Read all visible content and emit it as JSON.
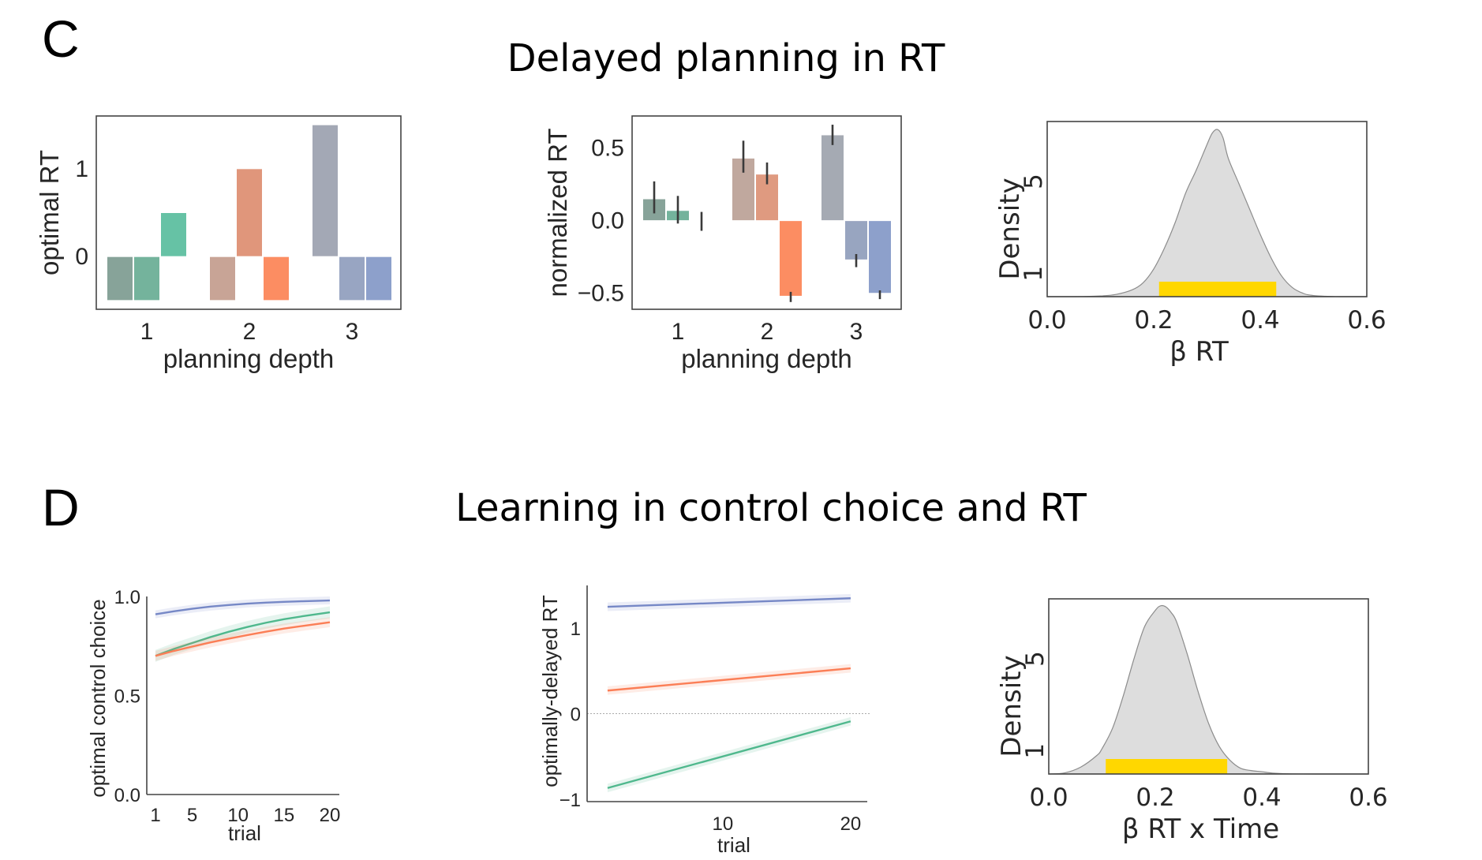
{
  "panels": {
    "C": {
      "letter": "C",
      "title": "Delayed planning in RT"
    },
    "D": {
      "letter": "D",
      "title": "Learning in control choice and RT"
    }
  },
  "colors": {
    "axis": "#444444",
    "text": "#262626",
    "density_fill": "#dddddd",
    "density_line": "#8c8c8c",
    "hdi": "#ffd700",
    "errorbar": "#3a3a3a",
    "blue": "#7688c6",
    "green": "#4fb88d",
    "orange": "#fb7e56",
    "zero_line": "#aaaaaa"
  },
  "chart_data": [
    {
      "id": "optimal-rt",
      "type": "bar",
      "title": "",
      "xlabel": "planning depth",
      "ylabel": "optimal RT",
      "categories": [
        "1",
        "2",
        "3"
      ],
      "yticks": [
        "0",
        "1"
      ],
      "ytick_values": [
        0,
        1
      ],
      "ylim": [
        -0.6,
        1.6
      ],
      "series": [
        {
          "category": "1",
          "values": [
            -0.5,
            -0.5,
            0.5
          ],
          "colors": [
            "#87a399",
            "#74b39c",
            "#66c2a5"
          ]
        },
        {
          "category": "2",
          "values": [
            -0.5,
            1.0,
            -0.5
          ],
          "colors": [
            "#c8a496",
            "#e0967b",
            "#fc8d62"
          ]
        },
        {
          "category": "3",
          "values": [
            1.5,
            -0.5,
            -0.5
          ],
          "colors": [
            "#a3a8b5",
            "#98a5c2",
            "#8da0cb"
          ]
        }
      ]
    },
    {
      "id": "normalized-rt",
      "type": "bar",
      "title": "",
      "xlabel": "planning depth",
      "ylabel": "normalized RT",
      "categories": [
        "1",
        "2",
        "3"
      ],
      "yticks": [
        "−0.5",
        "0.0",
        "0.5"
      ],
      "ytick_values": [
        -0.5,
        0.0,
        0.5
      ],
      "ylim": [
        -0.61,
        0.72
      ],
      "series": [
        {
          "category": "1",
          "values": [
            0.15,
            0.07,
            0.0
          ],
          "err_low": [
            0.05,
            -0.02,
            -0.07
          ],
          "err_high": [
            0.27,
            0.17,
            0.06
          ],
          "colors": [
            "#87a399",
            "#74b39c",
            "#66c2a5"
          ]
        },
        {
          "category": "2",
          "values": [
            0.43,
            0.32,
            -0.52
          ],
          "err_low": [
            0.33,
            0.25,
            -0.56
          ],
          "err_high": [
            0.55,
            0.4,
            -0.49
          ],
          "colors": [
            "#c0a89e",
            "#df9a80",
            "#fc8d62"
          ]
        },
        {
          "category": "3",
          "values": [
            0.59,
            -0.27,
            -0.5
          ],
          "err_low": [
            0.52,
            -0.32,
            -0.54
          ],
          "err_high": [
            0.66,
            -0.23,
            -0.48
          ],
          "colors": [
            "#a5aab3",
            "#98a5c0",
            "#8da0cb"
          ]
        }
      ]
    },
    {
      "id": "beta-rt-density",
      "type": "area",
      "title": "",
      "xlabel": "β RT",
      "ylabel": "Density",
      "xticks": [
        "0.0",
        "0.2",
        "0.4",
        "0.6"
      ],
      "xtick_values": [
        0.0,
        0.2,
        0.4,
        0.6
      ],
      "yticks": [
        "1",
        "5"
      ],
      "ytick_values": [
        1,
        5
      ],
      "xlim": [
        0.0,
        0.6
      ],
      "ylim": [
        0,
        7.6
      ],
      "x": [
        0.0,
        0.05,
        0.1,
        0.13,
        0.16,
        0.18,
        0.2,
        0.22,
        0.24,
        0.26,
        0.28,
        0.3,
        0.31,
        0.32,
        0.33,
        0.34,
        0.36,
        0.38,
        0.4,
        0.42,
        0.44,
        0.46,
        0.48,
        0.5,
        0.55,
        0.6
      ],
      "y": [
        0.0,
        0.0,
        0.03,
        0.1,
        0.3,
        0.6,
        1.2,
        2.1,
        3.2,
        4.5,
        5.5,
        6.6,
        7.1,
        7.25,
        6.9,
        6.0,
        4.9,
        3.8,
        2.7,
        1.7,
        0.9,
        0.4,
        0.15,
        0.05,
        0.0,
        0.0
      ],
      "hdi": [
        0.21,
        0.43
      ]
    },
    {
      "id": "optimal-control-choice",
      "type": "line",
      "title": "",
      "xlabel": "trial",
      "ylabel": "optimal control choice",
      "xticks": [
        "1",
        "5",
        "10",
        "15",
        "20"
      ],
      "xtick_values": [
        1,
        5,
        10,
        15,
        20
      ],
      "yticks": [
        "0.0",
        "0.5",
        "1.0"
      ],
      "ytick_values": [
        0.0,
        0.5,
        1.0
      ],
      "xlim": [
        1,
        20
      ],
      "ylim": [
        0.0,
        1.0
      ],
      "x": [
        1,
        3,
        5,
        7,
        9,
        11,
        13,
        15,
        17,
        20
      ],
      "series": [
        {
          "name": "blue",
          "color": "#7688c6",
          "values": [
            0.91,
            0.925,
            0.938,
            0.949,
            0.957,
            0.964,
            0.969,
            0.973,
            0.976,
            0.98
          ],
          "band": 0.02
        },
        {
          "name": "green",
          "color": "#4fb88d",
          "values": [
            0.7,
            0.735,
            0.765,
            0.795,
            0.822,
            0.846,
            0.867,
            0.885,
            0.9,
            0.92
          ],
          "band": 0.03
        },
        {
          "name": "orange",
          "color": "#fb7e56",
          "values": [
            0.7,
            0.725,
            0.747,
            0.768,
            0.787,
            0.805,
            0.822,
            0.838,
            0.851,
            0.87
          ],
          "band": 0.025
        }
      ]
    },
    {
      "id": "optimally-delayed-rt",
      "type": "line",
      "title": "",
      "xlabel": "trial",
      "ylabel": "optimally-delayed RT",
      "xticks": [
        "10",
        "20"
      ],
      "xtick_values": [
        10,
        20
      ],
      "yticks": [
        "−1",
        "0",
        "1"
      ],
      "ytick_values": [
        -1,
        0,
        1
      ],
      "xlim": [
        -0.6,
        21.3
      ],
      "ylim": [
        -1.02,
        1.5
      ],
      "x": [
        1,
        20
      ],
      "zero_line": 0,
      "series": [
        {
          "name": "blue",
          "color": "#7688c6",
          "values": [
            1.25,
            1.35
          ],
          "band": 0.05
        },
        {
          "name": "orange",
          "color": "#fb7e56",
          "values": [
            0.27,
            0.53
          ],
          "band": 0.05
        },
        {
          "name": "green",
          "color": "#4fb88d",
          "values": [
            -0.87,
            -0.09
          ],
          "band": 0.05
        }
      ]
    },
    {
      "id": "beta-rt-time-density",
      "type": "area",
      "title": "",
      "xlabel": "β RT x Time",
      "ylabel": "Density",
      "xticks": [
        "0.0",
        "0.2",
        "0.4",
        "0.6"
      ],
      "xtick_values": [
        0.0,
        0.2,
        0.4,
        0.6
      ],
      "yticks": [
        "1",
        "5"
      ],
      "ytick_values": [
        1,
        5
      ],
      "xlim": [
        0.0,
        0.6
      ],
      "ylim": [
        0,
        7.6
      ],
      "x": [
        0.0,
        0.03,
        0.06,
        0.09,
        0.1,
        0.12,
        0.14,
        0.16,
        0.18,
        0.2,
        0.21,
        0.22,
        0.23,
        0.24,
        0.26,
        0.28,
        0.3,
        0.32,
        0.34,
        0.36,
        0.38,
        0.4,
        0.42,
        0.45,
        0.5,
        0.6
      ],
      "y": [
        0.0,
        0.05,
        0.3,
        0.8,
        1.1,
        2.0,
        3.4,
        5.0,
        6.4,
        7.1,
        7.3,
        7.25,
        7.0,
        6.6,
        5.2,
        3.6,
        2.2,
        1.2,
        0.6,
        0.25,
        0.15,
        0.1,
        0.04,
        0.01,
        0.0,
        0.0
      ],
      "hdi": [
        0.107,
        0.335
      ]
    }
  ]
}
